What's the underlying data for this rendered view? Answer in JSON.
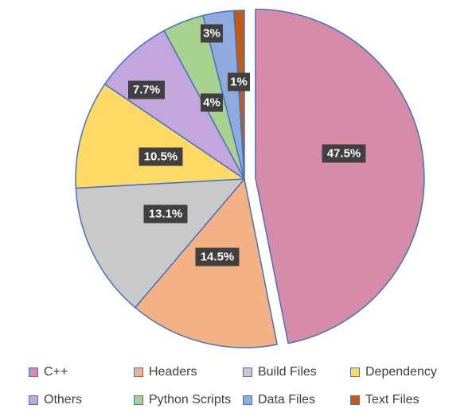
{
  "chart_data": {
    "type": "pie",
    "title": "",
    "legend_position": "bottom",
    "exploded": [
      "C++"
    ],
    "slices": [
      {
        "name": "C++",
        "value": 47.5,
        "label": "47.5%",
        "color": "#d68ba8"
      },
      {
        "name": "Headers",
        "value": 14.5,
        "label": "14.5%",
        "color": "#f4b183"
      },
      {
        "name": "Build Files",
        "value": 13.1,
        "label": "13.1%",
        "color": "#c9c9c9"
      },
      {
        "name": "Dependency",
        "value": 10.5,
        "label": "10.5%",
        "color": "#ffd966"
      },
      {
        "name": "Others",
        "value": 7.7,
        "label": "7.7%",
        "color": "#c3a6dc"
      },
      {
        "name": "Python Scripts",
        "value": 4,
        "label": "4%",
        "color": "#a9d18e"
      },
      {
        "name": "Data Files",
        "value": 3,
        "label": "3%",
        "color": "#8faadc"
      },
      {
        "name": "Text Files",
        "value": 1,
        "label": "1%",
        "color": "#c55a11"
      }
    ],
    "legend_order": [
      "C++",
      "Headers",
      "Build Files",
      "Dependency",
      "Others",
      "Python Scripts",
      "Data Files",
      "Text Files"
    ]
  }
}
